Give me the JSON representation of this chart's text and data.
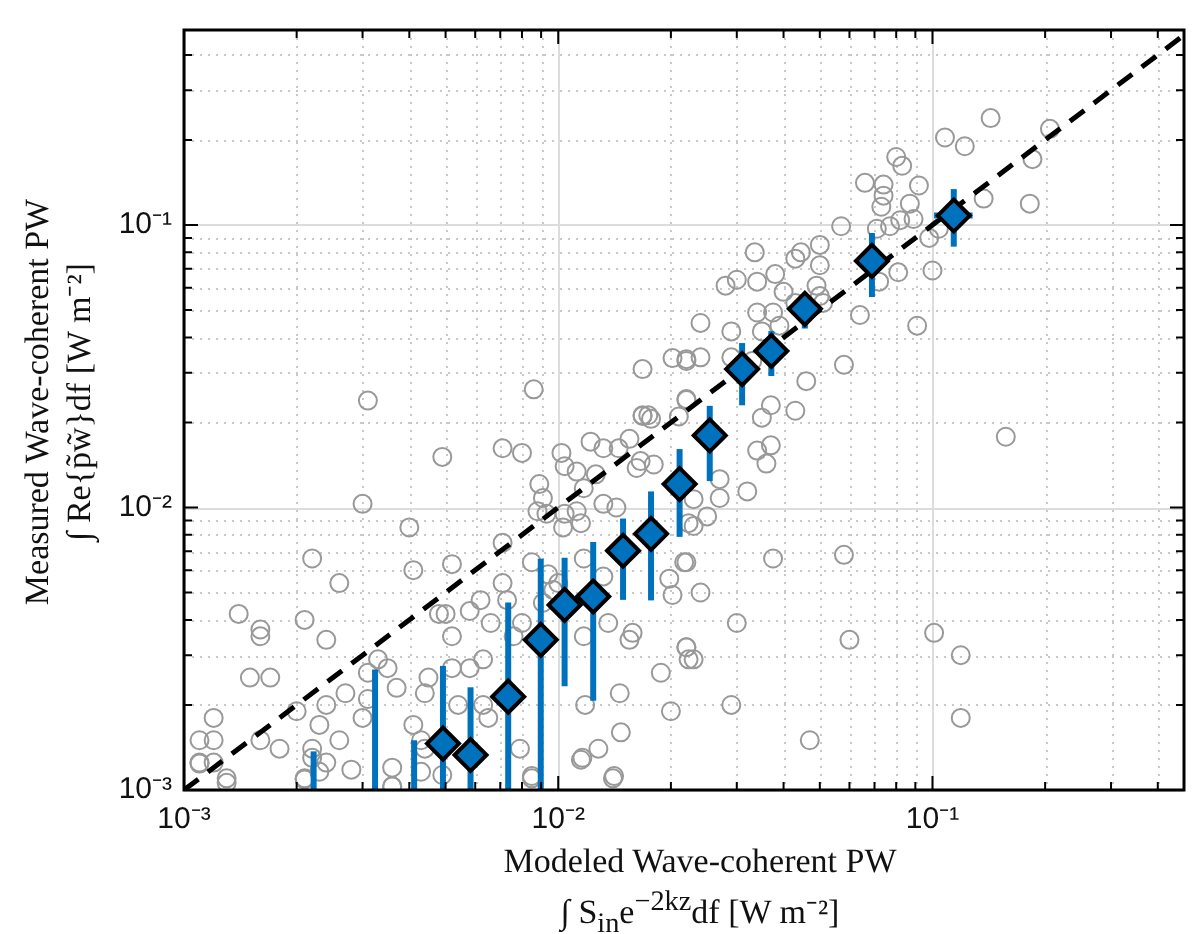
{
  "chart_data": {
    "type": "scatter",
    "xlabel": "Modeled Wave-coherent PW\n∫ S$_{in}$e$^{−2kz}$df [W m⁻²]",
    "ylabel": "Measured Wave-coherent PW\n∫ Re{p̃w̃}df [W m⁻²]",
    "log": "xy",
    "grid": true,
    "legend": false,
    "xlim": [
      0.001,
      0.47
    ],
    "ylim": [
      0.001,
      0.49
    ],
    "xticks": [
      {
        "value": 0.001,
        "label": "10⁻³"
      },
      {
        "value": 0.002,
        "label": null
      },
      {
        "value": 0.003,
        "label": null
      },
      {
        "value": 0.004,
        "label": null
      },
      {
        "value": 0.005,
        "label": null
      },
      {
        "value": 0.006,
        "label": null
      },
      {
        "value": 0.007,
        "label": null
      },
      {
        "value": 0.008,
        "label": null
      },
      {
        "value": 0.009,
        "label": null
      },
      {
        "value": 0.01,
        "label": "10⁻²"
      },
      {
        "value": 0.02,
        "label": null
      },
      {
        "value": 0.03,
        "label": null
      },
      {
        "value": 0.04,
        "label": null
      },
      {
        "value": 0.05,
        "label": null
      },
      {
        "value": 0.06,
        "label": null
      },
      {
        "value": 0.07,
        "label": null
      },
      {
        "value": 0.08,
        "label": null
      },
      {
        "value": 0.09,
        "label": null
      },
      {
        "value": 0.1,
        "label": "10⁻¹"
      },
      {
        "value": 0.2,
        "label": null
      },
      {
        "value": 0.3,
        "label": null
      },
      {
        "value": 0.4,
        "label": null
      }
    ],
    "yticks": [
      {
        "value": 0.001,
        "label": "10⁻³"
      },
      {
        "value": 0.002,
        "label": null
      },
      {
        "value": 0.003,
        "label": null
      },
      {
        "value": 0.004,
        "label": null
      },
      {
        "value": 0.005,
        "label": null
      },
      {
        "value": 0.006,
        "label": null
      },
      {
        "value": 0.007,
        "label": null
      },
      {
        "value": 0.008,
        "label": null
      },
      {
        "value": 0.009,
        "label": null
      },
      {
        "value": 0.01,
        "label": "10⁻²"
      },
      {
        "value": 0.02,
        "label": null
      },
      {
        "value": 0.03,
        "label": null
      },
      {
        "value": 0.04,
        "label": null
      },
      {
        "value": 0.05,
        "label": null
      },
      {
        "value": 0.06,
        "label": null
      },
      {
        "value": 0.07,
        "label": null
      },
      {
        "value": 0.08,
        "label": null
      },
      {
        "value": 0.09,
        "label": null
      },
      {
        "value": 0.1,
        "label": "10⁻¹"
      },
      {
        "value": 0.2,
        "label": null
      },
      {
        "value": 0.3,
        "label": null
      },
      {
        "value": 0.4,
        "label": null
      }
    ],
    "series": [
      {
        "type": "scatter",
        "marker": "circle",
        "color": "#999999",
        "x": [
          0.0049,
          0.0071,
          0.008,
          0.0102,
          0.0104,
          0.003,
          0.004,
          0.0041,
          0.0022,
          0.0026,
          0.0014,
          0.0021,
          0.0016,
          0.0016,
          0.0024,
          0.0033,
          0.0015,
          0.0017,
          0.002,
          0.0024,
          0.0023,
          0.0012,
          0.0011,
          0.0012,
          0.0016,
          0.0018,
          0.0022,
          0.0022,
          0.0024,
          0.0026,
          0.0011,
          0.0012,
          0.0013,
          0.0021,
          0.003,
          0.0031,
          0.0027,
          0.0031,
          0.0035,
          0.0037,
          0.0045,
          0.0044,
          0.0041,
          0.0043,
          0.0044,
          0.0036,
          0.0036,
          0.0052,
          0.0048,
          0.005,
          0.0052,
          0.0058,
          0.0062,
          0.0066,
          0.0071,
          0.0073,
          0.008,
          0.0076,
          0.0063,
          0.0058,
          0.0052,
          0.0054,
          0.0063,
          0.0065,
          0.0079,
          0.0085,
          0.0071,
          0.0089,
          0.0091,
          0.0093,
          0.0088,
          0.0085,
          0.0094,
          0.01,
          0.0091,
          0.0097,
          0.0112,
          0.0117,
          0.0122,
          0.0132,
          0.0145,
          0.0155,
          0.0168,
          0.0177,
          0.018,
          0.0162,
          0.0126,
          0.0132,
          0.0143,
          0.0166,
          0.0104,
          0.0103,
          0.0112,
          0.0117,
          0.0115,
          0.0132,
          0.0117,
          0.0136,
          0.0158,
          0.0155,
          0.0188,
          0.02,
          0.0146,
          0.0147,
          0.0118,
          0.0128,
          0.0116,
          0.014,
          0.0198,
          0.0217,
          0.0223,
          0.0202,
          0.022,
          0.0223,
          0.0031,
          0.0086,
          0.0168,
          0.0202,
          0.022,
          0.022,
          0.0168,
          0.0174,
          0.021,
          0.143,
          0.108,
          0.122,
          0.206,
          0.185,
          0.08,
          0.083,
          0.066,
          0.074,
          0.092,
          0.074,
          0.073,
          0.087,
          0.137,
          0.182,
          0.057,
          0.077,
          0.071,
          0.082,
          0.089,
          0.098,
          0.104,
          0.05,
          0.0445,
          0.0335,
          0.043,
          0.05,
          0.038,
          0.03,
          0.028,
          0.034,
          0.049,
          0.05,
          0.04,
          0.043,
          0.051,
          0.0375,
          0.034,
          0.039,
          0.035,
          0.024,
          0.029,
          0.064,
          0.072,
          0.081,
          0.1,
          0.091,
          0.058,
          0.046,
          0.037,
          0.043,
          0.024,
          0.022,
          0.029,
          0.033,
          0.022,
          0.157,
          0.032,
          0.023,
          0.025,
          0.023,
          0.035,
          0.034,
          0.037,
          0.036,
          0.027,
          0.027,
          0.022,
          0.0375,
          0.058,
          0.024,
          0.03,
          0.06,
          0.101,
          0.119,
          0.022,
          0.023,
          0.029,
          0.119,
          0.047,
          0.0011,
          0.0013,
          0.0021,
          0.0023,
          0.0028,
          0.0036,
          0.0043,
          0.0049,
          0.0085,
          0.0141,
          0.0115
        ],
        "values": [
          0.0151,
          0.0162,
          0.0156,
          0.0156,
          0.014,
          0.0103,
          0.0085,
          0.006,
          0.0066,
          0.0054,
          0.0042,
          0.004,
          0.0037,
          0.0035,
          0.0034,
          0.0029,
          0.0025,
          0.0025,
          0.0019,
          0.002,
          0.0017,
          0.0018,
          0.0015,
          0.0015,
          0.0015,
          0.0014,
          0.0014,
          0.0013,
          0.00125,
          0.0015,
          0.00125,
          0.00125,
          0.0011,
          0.0011,
          0.0018,
          0.0021,
          0.0022,
          0.0026,
          0.0027,
          0.0023,
          0.0025,
          0.0022,
          0.0017,
          0.0015,
          0.0014,
          0.0012,
          0.00103,
          0.0063,
          0.0042,
          0.0042,
          0.0035,
          0.0043,
          0.0047,
          0.0039,
          0.0054,
          0.0047,
          0.0039,
          0.0035,
          0.0029,
          0.0027,
          0.0027,
          0.002,
          0.002,
          0.0018,
          0.0014,
          0.0011,
          0.0075,
          0.0121,
          0.0108,
          0.0095,
          0.0097,
          0.0064,
          0.0058,
          0.0054,
          0.0046,
          0.0051,
          0.0134,
          0.0117,
          0.0171,
          0.0162,
          0.0162,
          0.0175,
          0.0211,
          0.0206,
          0.0142,
          0.0138,
          0.0131,
          0.0103,
          0.01,
          0.0146,
          0.0095,
          0.0085,
          0.0097,
          0.0066,
          0.0088,
          0.0057,
          0.0035,
          0.0039,
          0.0036,
          0.0034,
          0.0026,
          0.0019,
          0.0022,
          0.0016,
          0.002,
          0.0014,
          0.0013,
          0.0011,
          0.0056,
          0.0064,
          0.0088,
          0.0049,
          0.0032,
          0.0029,
          0.0239,
          0.0262,
          0.0309,
          0.0338,
          0.0335,
          0.0242,
          0.0212,
          0.0212,
          0.021,
          0.239,
          0.204,
          0.19,
          0.219,
          0.171,
          0.174,
          0.162,
          0.141,
          0.139,
          0.138,
          0.127,
          0.116,
          0.119,
          0.124,
          0.119,
          0.099,
          0.099,
          0.097,
          0.104,
          0.105,
          0.09,
          0.097,
          0.085,
          0.08,
          0.08,
          0.076,
          0.072,
          0.067,
          0.064,
          0.061,
          0.063,
          0.061,
          0.056,
          0.058,
          0.053,
          0.053,
          0.049,
          0.049,
          0.044,
          0.042,
          0.045,
          0.042,
          0.048,
          0.063,
          0.068,
          0.069,
          0.044,
          0.032,
          0.028,
          0.023,
          0.022,
          0.034,
          0.033,
          0.034,
          0.033,
          0.024,
          0.0178,
          0.0114,
          0.0107,
          0.0093,
          0.0086,
          0.0208,
          0.0159,
          0.0166,
          0.0143,
          0.0126,
          0.0108,
          0.0064,
          0.0066,
          0.0068,
          0.005,
          0.0039,
          0.0034,
          0.0036,
          0.003,
          0.0032,
          0.0029,
          0.002,
          0.0018,
          0.0015,
          0.00124,
          0.00106,
          0.00109,
          0.00116,
          0.00118,
          0.00103,
          0.00116,
          0.00113,
          0.00112,
          0.00112,
          0.00128
        ]
      },
      {
        "type": "line",
        "marker": "none",
        "line_style": "dashed",
        "color": "#000000",
        "x": [
          0.001,
          0.47
        ],
        "values": [
          0.001,
          0.47
        ]
      },
      {
        "type": "line",
        "marker": "none",
        "color": "#0072bd",
        "x": [
          0.00222,
          0.00222
        ],
        "values": [
          0.001,
          0.00137
        ]
      },
      {
        "type": "line",
        "marker": "none",
        "color": "#0072bd",
        "x": [
          0.00324,
          0.00324
        ],
        "values": [
          0.001,
          0.00267
        ]
      },
      {
        "type": "line",
        "marker": "none",
        "color": "#0072bd",
        "x": [
          0.00412,
          0.00412
        ],
        "values": [
          0.001,
          0.0015
        ]
      },
      {
        "type": "scatter",
        "marker": "diamond",
        "color": "#0072bd",
        "x": [
          0.00492,
          0.00583,
          0.00735,
          0.00898,
          0.0104,
          0.0124,
          0.0149,
          0.0177,
          0.0211,
          0.0254,
          0.031,
          0.0371,
          0.0456,
          0.0689,
          0.114
        ],
        "values": [
          0.00146,
          0.00133,
          0.00214,
          0.0034,
          0.00452,
          0.00484,
          0.00703,
          0.00807,
          0.0121,
          0.018,
          0.0309,
          0.0358,
          0.0505,
          0.0746,
          0.108
        ],
        "errors": [
          [
            0.001,
            0.00275
          ],
          [
            0.001,
            0.00231
          ],
          [
            0.001,
            0.00461
          ],
          [
            0.001,
            0.00659
          ],
          [
            0.00233,
            0.00664
          ],
          [
            0.00207,
            0.00755
          ],
          [
            0.00471,
            0.00914
          ],
          [
            0.00469,
            0.0114
          ],
          [
            0.00787,
            0.0161
          ],
          [
            0.0124,
            0.0229
          ],
          [
            0.023,
            0.0382
          ],
          [
            0.0292,
            0.0421
          ],
          [
            0.043,
            0.057
          ],
          [
            0.0556,
            0.0937
          ],
          [
            0.0838,
            0.134
          ]
        ],
        "xerrors": [
          null,
          null,
          null,
          null,
          null,
          null,
          null,
          null,
          null,
          null,
          null,
          null,
          null,
          null,
          [
            0.101,
            0.128
          ]
        ]
      }
    ]
  }
}
